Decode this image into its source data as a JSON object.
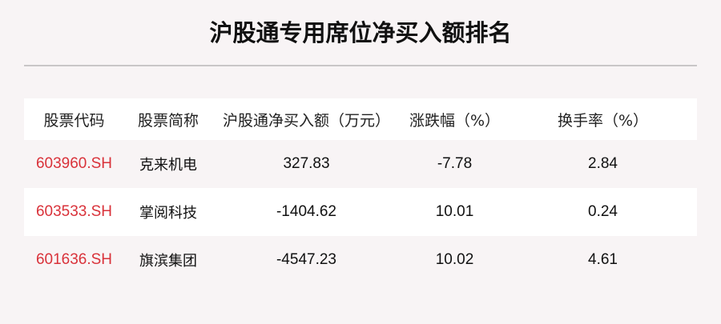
{
  "title": "沪股通专用席位净买入额排名",
  "columns": [
    "股票代码",
    "股票简称",
    "沪股通净买入额（万元）",
    "涨跌幅（%）",
    "换手率（%）"
  ],
  "rows": [
    {
      "code": "603960.SH",
      "name": "克来机电",
      "net_buy": "327.83",
      "change": "-7.78",
      "turnover": "2.84"
    },
    {
      "code": "603533.SH",
      "name": "掌阅科技",
      "net_buy": "-1404.62",
      "change": "10.01",
      "turnover": "0.24"
    },
    {
      "code": "601636.SH",
      "name": "旗滨集团",
      "net_buy": "-4547.23",
      "change": "10.02",
      "turnover": "4.61"
    }
  ],
  "colors": {
    "code": "#d9323a",
    "background": "#f8f4f5"
  }
}
